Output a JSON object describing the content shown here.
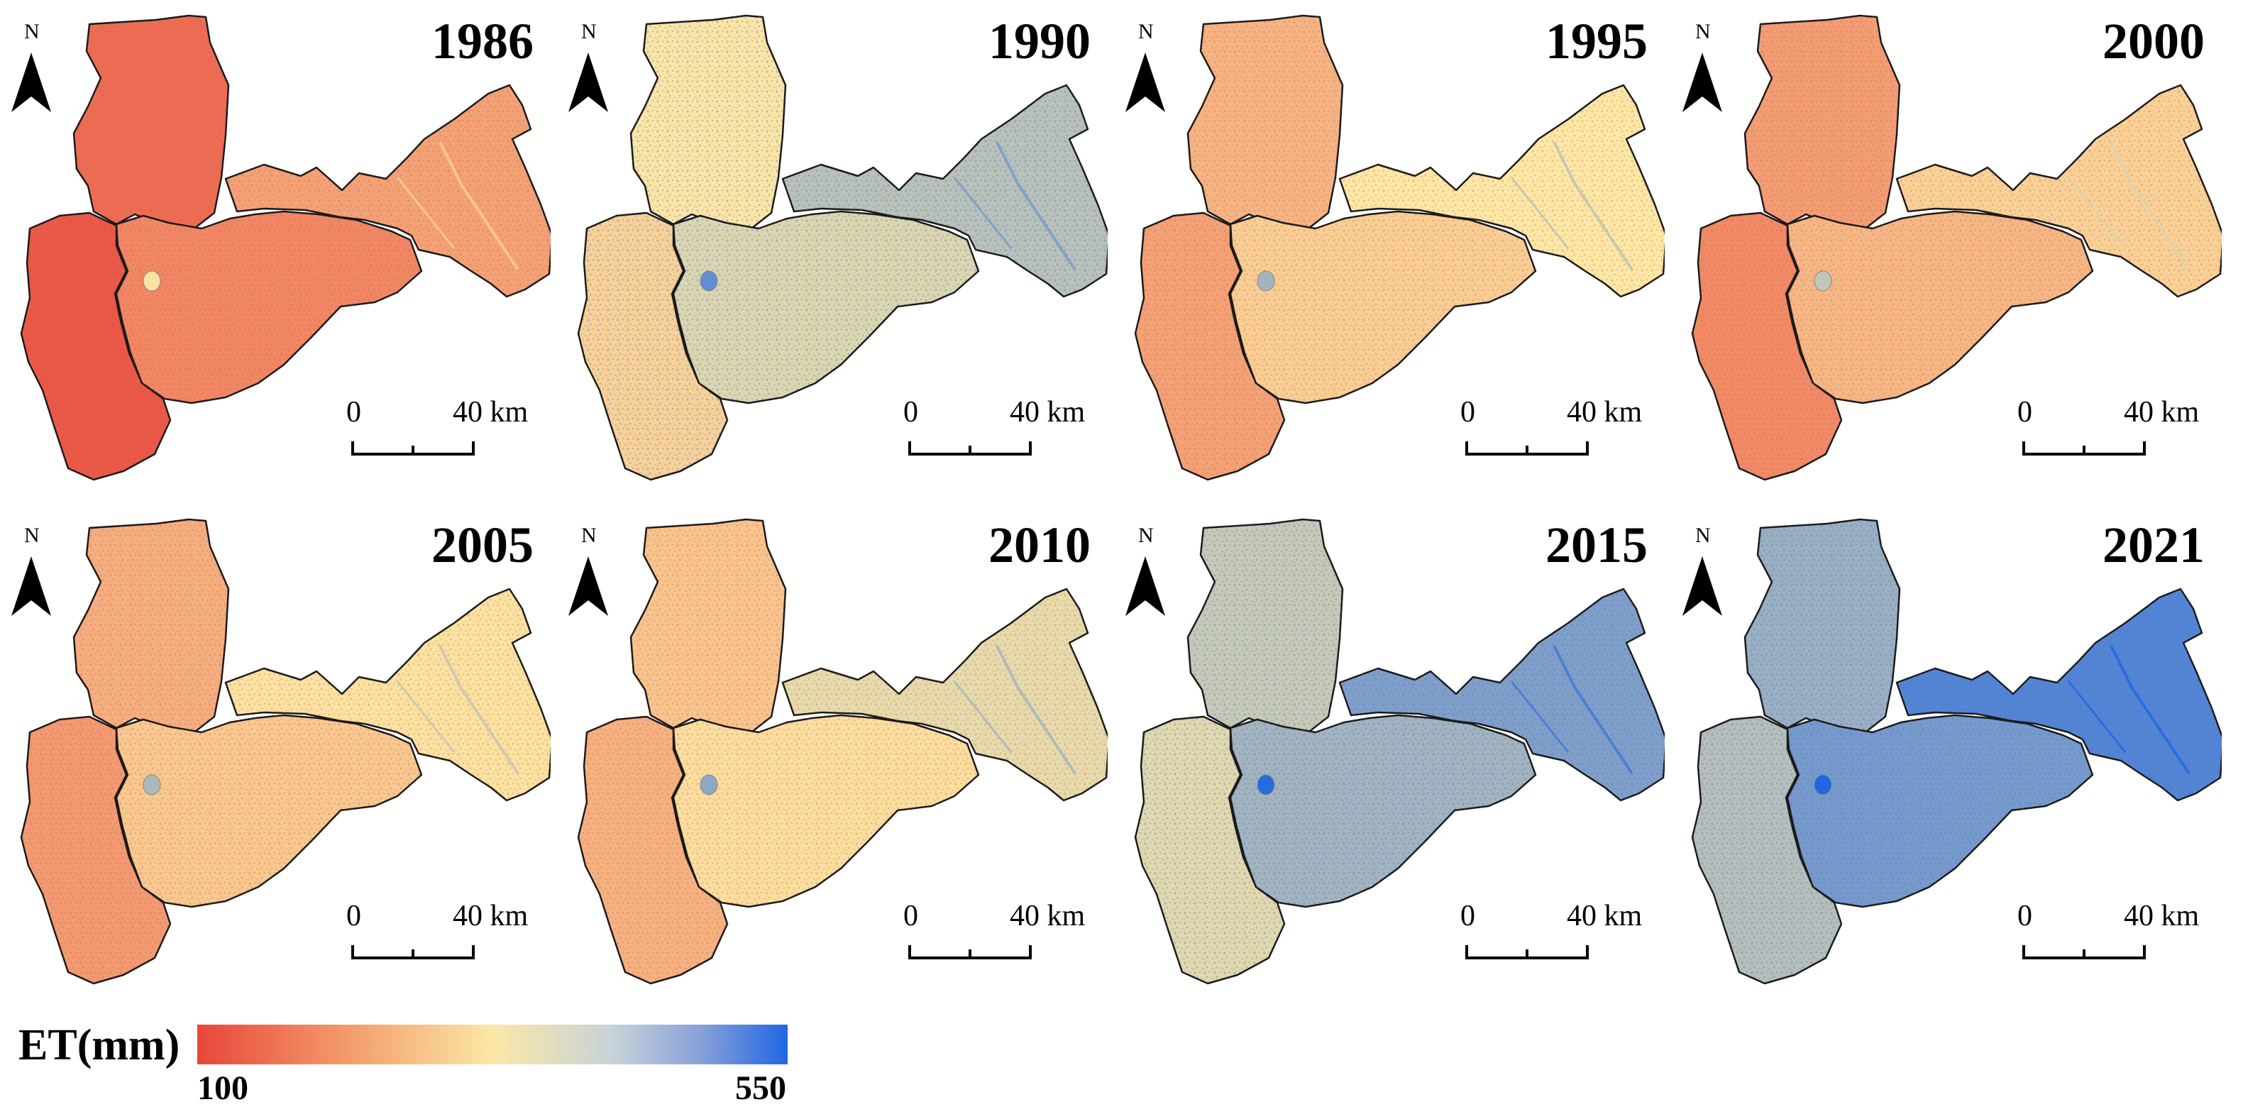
{
  "north_letter": "N",
  "scale_bar": {
    "start_label": "0",
    "end_label": "40 km"
  },
  "panels": [
    {
      "year": "1986",
      "et_level": 0.18
    },
    {
      "year": "1990",
      "et_level": 0.55
    },
    {
      "year": "1995",
      "et_level": 0.4
    },
    {
      "year": "2000",
      "et_level": 0.33
    },
    {
      "year": "2005",
      "et_level": 0.38
    },
    {
      "year": "2010",
      "et_level": 0.45
    },
    {
      "year": "2015",
      "et_level": 0.68
    },
    {
      "year": "2021",
      "et_level": 0.78
    }
  ],
  "legend": {
    "title": "ET(mm)",
    "min_label": "100",
    "max_label": "550",
    "colors": {
      "low": "#e8463a",
      "mid": "#fbe8a6",
      "high": "#1f66e3"
    }
  }
}
